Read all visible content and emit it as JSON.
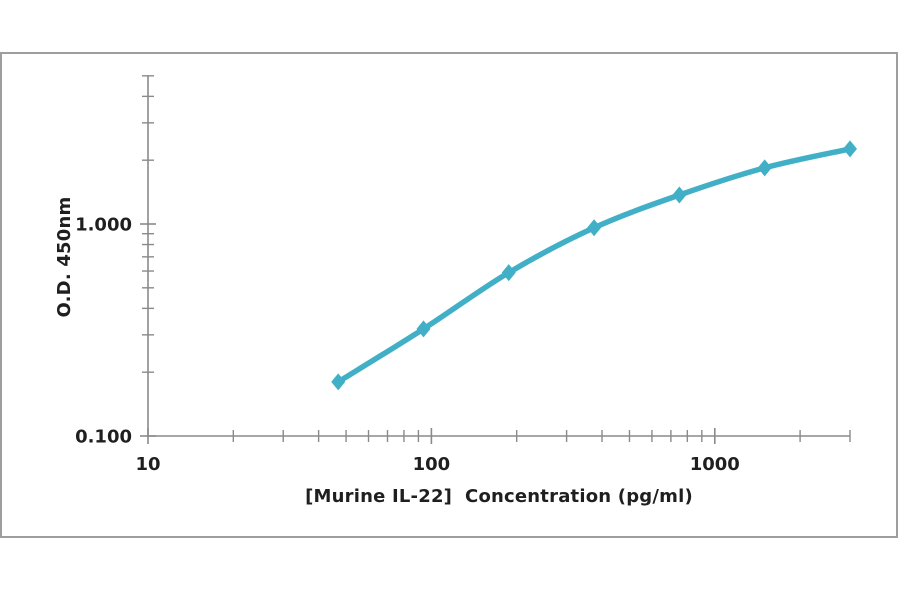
{
  "colors": {
    "background": "#ffffff",
    "frame_border": "#9e9e9e",
    "axis": "#8a8a8a",
    "text": "#1f1f1f",
    "curve": "#41b0c6"
  },
  "chart_data": {
    "type": "line",
    "title": "",
    "xlabel": "[Murine IL-22]  Concentration (pg/ml)",
    "ylabel": "O.D. 450nm",
    "x_scale": "log",
    "y_scale": "log",
    "xlim": [
      10,
      3000
    ],
    "ylim": [
      0.1,
      5
    ],
    "x": [
      46.9,
      93.8,
      187.5,
      375,
      750,
      1500,
      3000
    ],
    "values": [
      0.18,
      0.32,
      0.59,
      0.96,
      1.37,
      1.84,
      2.26
    ],
    "x_ticks": {
      "labeled": [
        {
          "value": 10,
          "label": "10"
        },
        {
          "value": 100,
          "label": "100"
        },
        {
          "value": 1000,
          "label": "1000"
        }
      ],
      "minor": [
        20,
        30,
        40,
        50,
        60,
        70,
        80,
        90,
        200,
        300,
        400,
        500,
        600,
        700,
        800,
        900,
        2000,
        3000
      ]
    },
    "y_ticks": {
      "labeled": [
        {
          "value": 0.1,
          "label": "0.100"
        },
        {
          "value": 1,
          "label": "1.000"
        }
      ],
      "minor": [
        0.2,
        0.3,
        0.4,
        0.5,
        0.6,
        0.7,
        0.8,
        0.9,
        2,
        3,
        4,
        5
      ]
    },
    "grid": "off",
    "legend": "none",
    "marker": "diamond"
  }
}
